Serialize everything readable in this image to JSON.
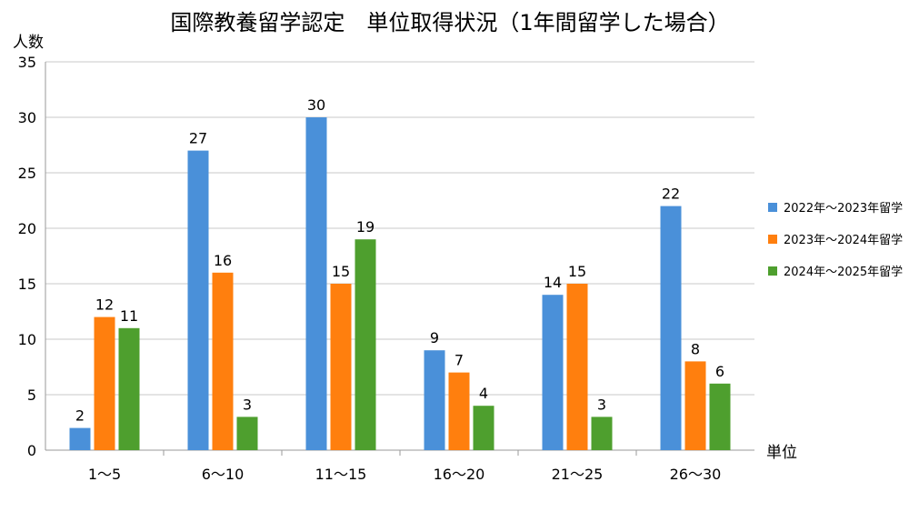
{
  "chart_data": {
    "type": "bar",
    "title": "国際教養留学認定　単位取得状況（1年間留学した場合）",
    "ylabel": "人数",
    "xlabel": "単位",
    "categories": [
      "1～5",
      "6～10",
      "11～15",
      "16～20",
      "21～25",
      "26～30"
    ],
    "ylim": [
      0,
      35
    ],
    "yticks": [
      0,
      5,
      10,
      15,
      20,
      25,
      30,
      35
    ],
    "grid": true,
    "legend_position": "right",
    "series": [
      {
        "name": "2022年～2023年留学",
        "color": "#4a90d9",
        "values": [
          2,
          27,
          30,
          9,
          14,
          22
        ]
      },
      {
        "name": "2023年～2024年留学",
        "color": "#ff7f0e",
        "values": [
          12,
          16,
          15,
          7,
          15,
          8
        ]
      },
      {
        "name": "2024年～2025年留学",
        "color": "#4e9f2e",
        "values": [
          11,
          3,
          19,
          4,
          3,
          6
        ]
      }
    ]
  }
}
